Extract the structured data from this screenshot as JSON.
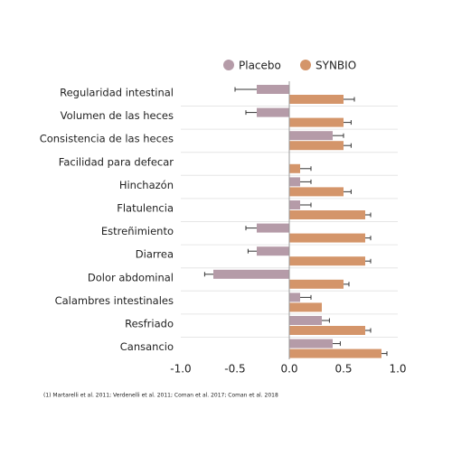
{
  "chart_data": {
    "type": "bar",
    "orientation": "horizontal",
    "categories": [
      "Regularidad intestinal",
      "Volumen de las heces",
      "Consistencia de las heces",
      "Facilidad para defecar",
      "Hinchazón",
      "Flatulencia",
      "Estreñimiento",
      "Diarrea",
      "Dolor abdominal",
      "Calambres intestinales",
      "Resfriado",
      "Cansancio"
    ],
    "series": [
      {
        "name": "Placebo",
        "color": "#b59ba8",
        "values": [
          -0.3,
          -0.3,
          0.4,
          null,
          0.1,
          0.1,
          -0.3,
          -0.3,
          -0.7,
          0.1,
          0.3,
          0.4
        ],
        "errors": [
          0.2,
          0.1,
          0.1,
          null,
          0.1,
          0.1,
          0.1,
          0.08,
          0.08,
          0.1,
          0.07,
          0.07
        ]
      },
      {
        "name": "SYNBIO",
        "color": "#d4956a",
        "values": [
          0.5,
          0.5,
          0.5,
          0.1,
          0.5,
          0.7,
          0.7,
          0.7,
          0.5,
          0.3,
          0.7,
          0.85
        ],
        "errors": [
          0.1,
          0.07,
          0.07,
          0.1,
          0.07,
          0.05,
          0.05,
          0.05,
          0.05,
          null,
          0.05,
          0.05
        ]
      }
    ],
    "xlim": [
      -1.0,
      1.0
    ],
    "xticks": [
      {
        "value": -1.0,
        "label": "-1.0"
      },
      {
        "value": -0.5,
        "label": "-0.5"
      },
      {
        "value": 0,
        "label": "0.0"
      },
      {
        "value": 0.5,
        "label": "0.5"
      },
      {
        "value": 1.0,
        "label": "1.0"
      }
    ],
    "grid": true,
    "legend": "top",
    "footnote": "(1) Martarelli et al. 2011; Verdenelli et al. 2011; Coman et al. 2017; Coman et al. 2018"
  }
}
